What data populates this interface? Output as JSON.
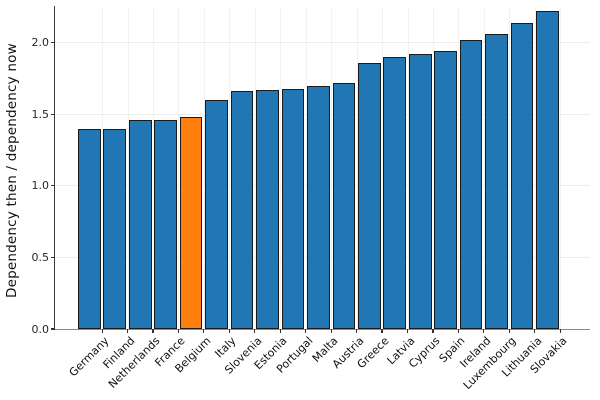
{
  "chart_data": {
    "type": "bar",
    "title": "",
    "xlabel": "",
    "ylabel": "Dependency then / dependency now",
    "categories": [
      "Germany",
      "Finland",
      "Netherlands",
      "France",
      "Belgium",
      "Italy",
      "Slovenia",
      "Estonia",
      "Portugal",
      "Malta",
      "Austria",
      "Greece",
      "Latvia",
      "Cyprus",
      "Spain",
      "Ireland",
      "Luxembourg",
      "Lithuania",
      "Slovakia"
    ],
    "values": [
      1.4,
      1.4,
      1.46,
      1.46,
      1.48,
      1.6,
      1.66,
      1.67,
      1.68,
      1.7,
      1.72,
      1.86,
      1.9,
      1.92,
      1.94,
      2.02,
      2.06,
      2.14,
      2.22
    ],
    "highlight_category": "Belgium",
    "highlight_index": 4,
    "ylim": [
      0,
      2.25
    ],
    "yticks": [
      0,
      0.5,
      1.0,
      1.5,
      2.0
    ],
    "ytick_labels": [
      "0.0",
      "0.5",
      "1.0",
      "1.5",
      "2.0"
    ],
    "grid": true,
    "legend": "none",
    "colors": {
      "bar": "#2077b4",
      "highlight": "#ff7f0e",
      "bar_edge": "#1a1a1a",
      "gridline_h": "#ececec",
      "gridline_v": "#f1f1f1",
      "left_spine": "#3a3a3a",
      "bottom_spine": "#8a8a8a",
      "tick_text": "#262626",
      "label_text": "#111111",
      "background": "#ffffff"
    }
  }
}
